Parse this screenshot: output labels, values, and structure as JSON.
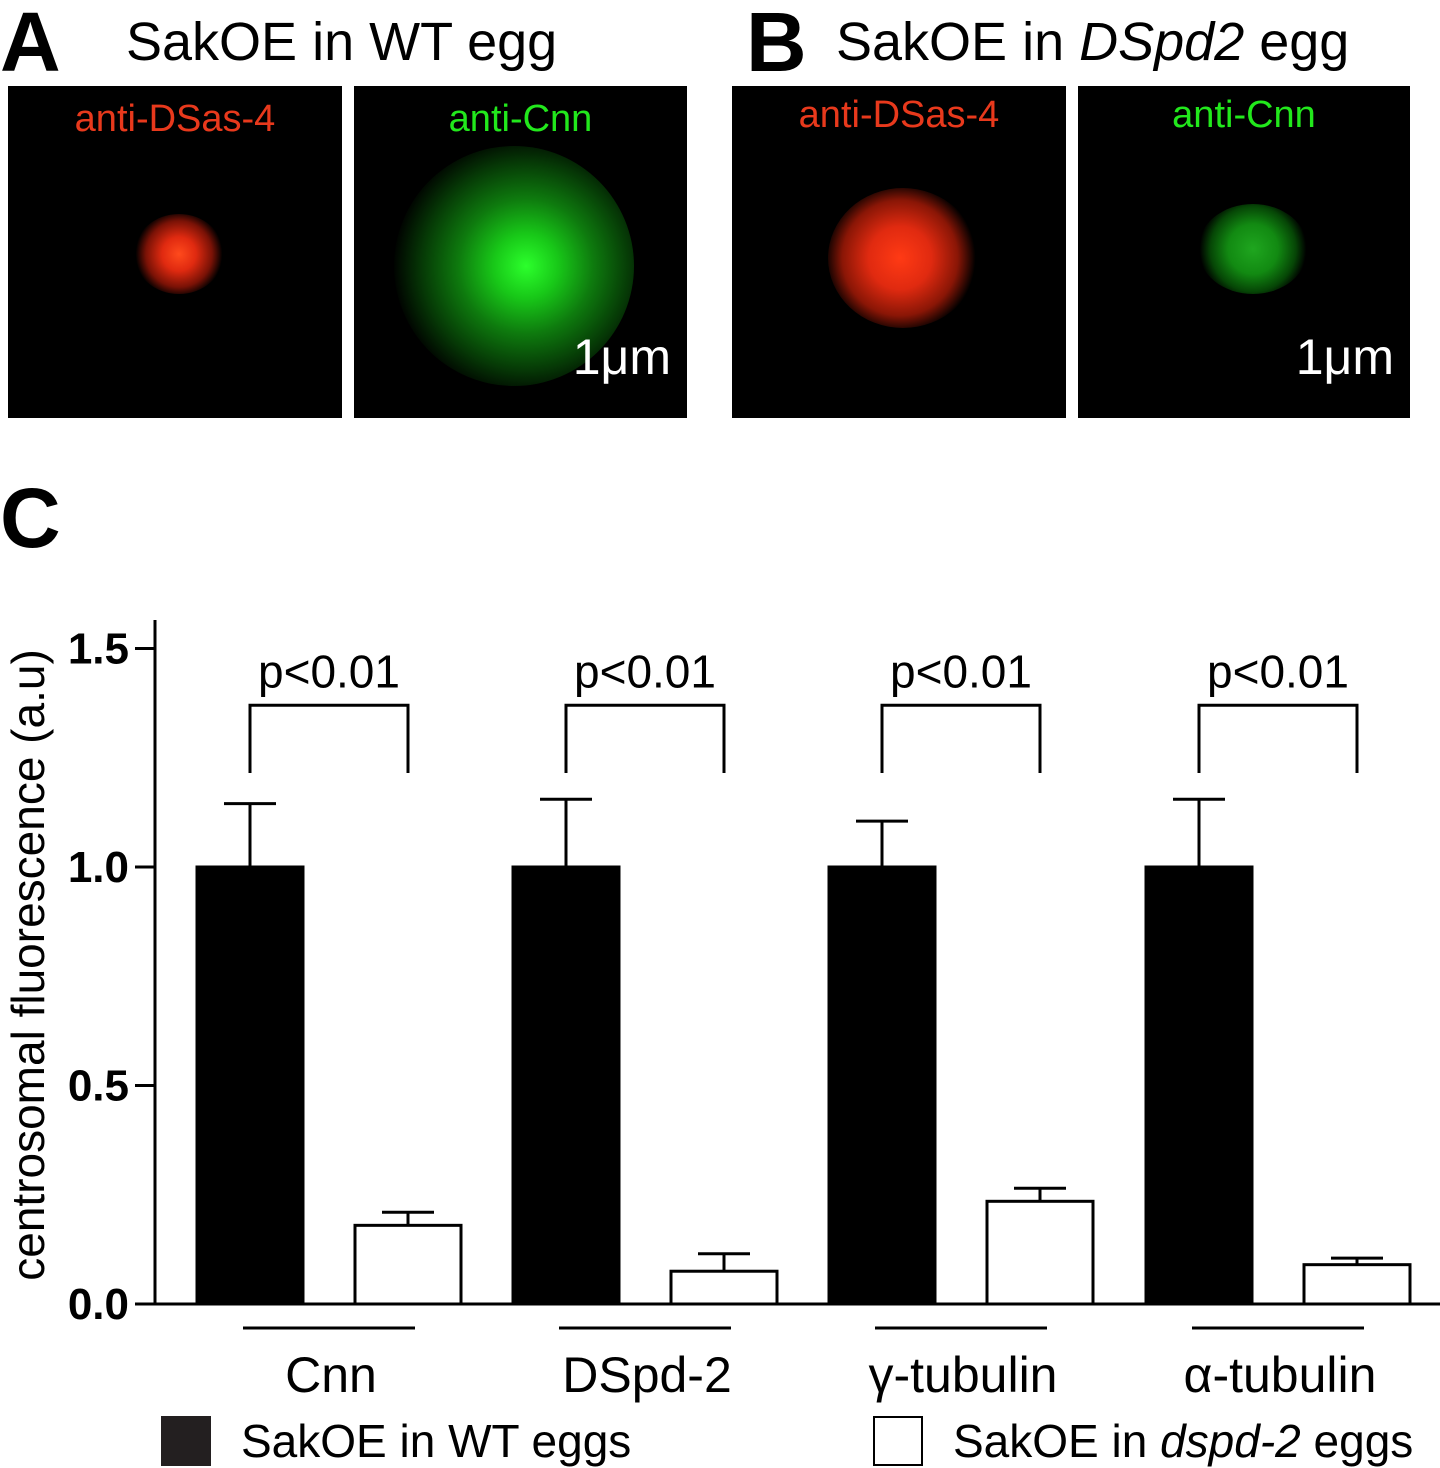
{
  "panels": {
    "A": {
      "letter": "A",
      "title": "SakOE in WT egg",
      "images": [
        {
          "label": "anti-DSas-4",
          "color": "#e8391c"
        },
        {
          "label": "anti-Cnn",
          "color": "#22e81c",
          "scale_label": "1μm"
        }
      ]
    },
    "B": {
      "letter": "B",
      "title_prefix": "SakOE in ",
      "title_italic": "DSpd2",
      "title_suffix": " egg",
      "images": [
        {
          "label": "anti-DSas-4",
          "color": "#e8391c"
        },
        {
          "label": "anti-Cnn",
          "color": "#22e81c",
          "scale_label": "1μm"
        }
      ]
    },
    "C": {
      "letter": "C"
    }
  },
  "chart_data": {
    "type": "bar",
    "ylabel": "centrosomal fluorescence (a.u)",
    "ylim": [
      0,
      1.5
    ],
    "yticks": [
      "0.0",
      "0.5",
      "1.0",
      "1.5"
    ],
    "categories": [
      "Cnn",
      "DSpd-2",
      "γ-tubulin",
      "α-tubulin"
    ],
    "series": [
      {
        "name": "SakOE in WT eggs",
        "color": "#000000",
        "values": [
          1.0,
          1.0,
          1.0,
          1.0
        ],
        "errors": [
          0.145,
          0.155,
          0.105,
          0.155
        ]
      },
      {
        "name": "SakOE in dspd-2 eggs",
        "color": "#ffffff",
        "values": [
          0.18,
          0.075,
          0.235,
          0.09
        ],
        "errors": [
          0.03,
          0.04,
          0.03,
          0.015
        ]
      }
    ],
    "significance": [
      "p<0.01",
      "p<0.01",
      "p<0.01",
      "p<0.01"
    ],
    "legend": {
      "items": [
        {
          "label": "SakOE in WT eggs"
        },
        {
          "label_prefix": "SakOE in ",
          "label_italic": "dspd-2",
          "label_suffix": " eggs"
        }
      ]
    }
  }
}
